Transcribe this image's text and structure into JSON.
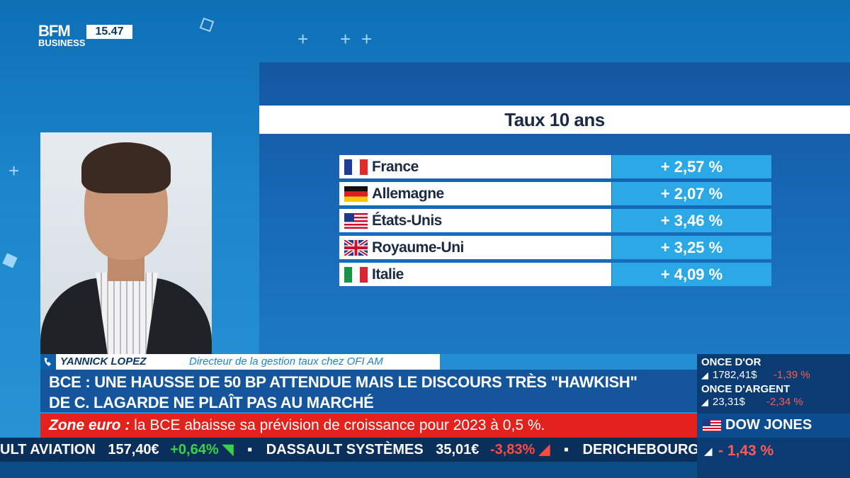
{
  "channel": {
    "logo_line1": "BFM",
    "logo_line2": "BUSINESS",
    "clock": "15.47"
  },
  "panel": {
    "title": "Taux 10 ans",
    "rows": [
      {
        "flag": "france-flag",
        "country": "France",
        "value": "+ 2,57 %"
      },
      {
        "flag": "germany-flag",
        "country": "Allemagne",
        "value": "+ 2,07 %"
      },
      {
        "flag": "usa-flag",
        "country": "États-Unis",
        "value": "+ 3,46 %"
      },
      {
        "flag": "uk-flag",
        "country": "Royaume-Uni",
        "value": "+ 3,25 %"
      },
      {
        "flag": "italy-flag",
        "country": "Italie",
        "value": "+ 4,09 %"
      }
    ]
  },
  "guest": {
    "name": "YANNICK LOPEZ",
    "role": "Directeur de la gestion taux chez OFI AM"
  },
  "headline": {
    "line1": "BCE : UNE HAUSSE DE 50 BP ATTENDUE MAIS LE DISCOURS TRÈS \"HAWKISH\"",
    "line2": "DE C. LAGARDE NE PLAÎT PAS AU MARCHÉ"
  },
  "breaking": {
    "label": "Zone euro :",
    "text": " la BCE abaisse sa prévision de croissance pour 2023 à 0,5 %."
  },
  "ticker": {
    "items": [
      {
        "name": "ULT AVIATION",
        "price": "157,40€",
        "change": "+0,64%",
        "dir": "up"
      },
      {
        "name": "DASSAULT SYSTÈMES",
        "price": "35,01€",
        "change": "-3,83%",
        "dir": "down"
      },
      {
        "name": "DERICHEBOURG",
        "price": "",
        "change": "",
        "dir": ""
      }
    ]
  },
  "markets": {
    "gold": {
      "label": "ONCE D'OR",
      "value": "1782,41$",
      "change": "-1,39 %"
    },
    "silver": {
      "label": "ONCE D'ARGENT",
      "value": "23,31$",
      "change": "-2,34 %"
    },
    "index": {
      "label": "DOW JONES",
      "change": "- 1,43 %"
    }
  },
  "colors": {
    "panel_value": "#2ba8e6",
    "headline": "#15559b",
    "breaking": "#e3211d",
    "down": "#ff4b43",
    "up": "#38d24a"
  }
}
